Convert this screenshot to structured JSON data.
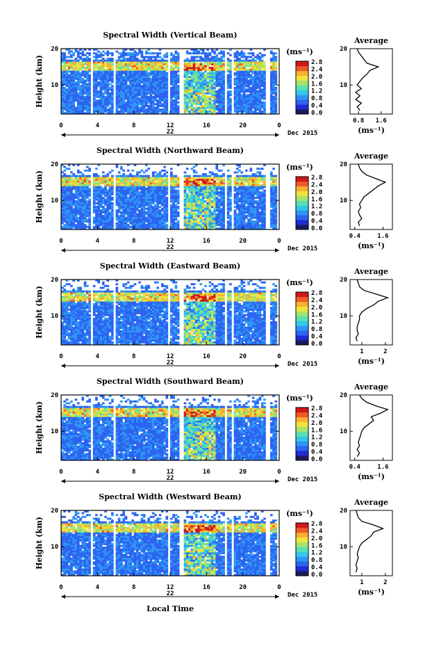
{
  "footer_label": "Local Time",
  "date_label": "Dec 2015",
  "day_label": "22",
  "colorbar": {
    "unit": "(ms⁻¹)",
    "ticks": [
      "0.0",
      "0.4",
      "0.8",
      "1.2",
      "1.6",
      "2.0",
      "2.4",
      "2.8"
    ],
    "colors": [
      "#1a1a5e",
      "#1f2bd6",
      "#2d64f0",
      "#2f95f5",
      "#33c8e8",
      "#5be0b0",
      "#a6e36a",
      "#f0e33c",
      "#f7b030",
      "#ef5a28",
      "#d01818"
    ]
  },
  "chart_data": [
    {
      "type": "heatmap",
      "title": "Spectral Width (Vertical Beam)",
      "ylabel": "Height (km)",
      "xlabel": "Local Time",
      "x_ticks": [
        "0",
        "4",
        "8",
        "12",
        "16",
        "20",
        "0"
      ],
      "y_ticks": [
        "20",
        "10"
      ],
      "xlim": [
        0,
        24
      ],
      "ylim": [
        2,
        20
      ],
      "clim": [
        0.0,
        2.8
      ],
      "profile": {
        "title": "Average",
        "xlabel": "(ms⁻¹)",
        "x_ticks": [
          "0.8",
          "1.6"
        ],
        "xlim": [
          0.5,
          2.0
        ],
        "height": [
          3,
          4,
          5,
          6,
          7,
          8,
          9,
          10,
          11,
          12,
          13,
          14,
          15,
          16,
          17,
          18,
          19,
          20
        ],
        "values": [
          0.85,
          0.75,
          0.9,
          0.7,
          0.85,
          0.7,
          0.9,
          0.75,
          0.85,
          0.95,
          1.1,
          1.2,
          1.5,
          1.1,
          1.0,
          0.9,
          0.8,
          0.75
        ]
      }
    },
    {
      "type": "heatmap",
      "title": "Spectral Width (Northward Beam)",
      "ylabel": "Height (km)",
      "xlabel": "Local Time",
      "x_ticks": [
        "0",
        "4",
        "8",
        "12",
        "16",
        "20",
        "0"
      ],
      "y_ticks": [
        "20",
        "10"
      ],
      "xlim": [
        0,
        24
      ],
      "ylim": [
        2,
        20
      ],
      "clim": [
        0.0,
        2.8
      ],
      "profile": {
        "title": "Average",
        "xlabel": "(ms⁻¹)",
        "x_ticks": [
          "0.4",
          "1.6"
        ],
        "xlim": [
          0.2,
          2.0
        ],
        "height": [
          3,
          4,
          5,
          6,
          7,
          8,
          9,
          10,
          11,
          12,
          13,
          14,
          15,
          16,
          17,
          18,
          19,
          20
        ],
        "values": [
          0.6,
          0.55,
          0.7,
          0.6,
          0.55,
          0.65,
          0.6,
          0.7,
          0.8,
          1.0,
          1.2,
          1.4,
          1.7,
          1.3,
          0.9,
          0.7,
          0.6,
          0.55
        ]
      }
    },
    {
      "type": "heatmap",
      "title": "Spectral Width (Eastward Beam)",
      "ylabel": "Height (km)",
      "xlabel": "Local Time",
      "x_ticks": [
        "0",
        "4",
        "8",
        "12",
        "16",
        "20",
        "0"
      ],
      "y_ticks": [
        "20",
        "10"
      ],
      "xlim": [
        0,
        24
      ],
      "ylim": [
        2,
        20
      ],
      "clim": [
        0.0,
        2.8
      ],
      "profile": {
        "title": "Average",
        "xlabel": "(ms⁻¹)",
        "x_ticks": [
          "1",
          "2"
        ],
        "xlim": [
          0.5,
          2.3
        ],
        "height": [
          3,
          4,
          5,
          6,
          7,
          8,
          9,
          10,
          11,
          12,
          13,
          14,
          15,
          16,
          17,
          18,
          19,
          20
        ],
        "values": [
          0.8,
          0.75,
          0.85,
          0.8,
          0.8,
          0.85,
          0.9,
          0.9,
          1.0,
          1.2,
          1.5,
          1.7,
          2.1,
          1.6,
          1.1,
          0.9,
          0.85,
          0.8
        ]
      }
    },
    {
      "type": "heatmap",
      "title": "Spectral Width (Southward Beam)",
      "ylabel": "Height (km)",
      "xlabel": "Local Time",
      "x_ticks": [
        "0",
        "4",
        "8",
        "12",
        "16",
        "20",
        "0"
      ],
      "y_ticks": [
        "20",
        "10"
      ],
      "xlim": [
        0,
        24
      ],
      "ylim": [
        2,
        20
      ],
      "clim": [
        0.0,
        2.8
      ],
      "profile": {
        "title": "Average",
        "xlabel": "(ms⁻¹)",
        "x_ticks": [
          "0.4",
          "1.6"
        ],
        "xlim": [
          0.2,
          2.0
        ],
        "height": [
          3,
          4,
          5,
          6,
          7,
          8,
          9,
          10,
          11,
          12,
          13,
          14,
          15,
          16,
          17,
          18,
          19,
          20
        ],
        "values": [
          0.5,
          0.6,
          0.5,
          0.6,
          0.55,
          0.6,
          0.65,
          0.7,
          0.8,
          1.0,
          1.2,
          1.1,
          1.5,
          1.8,
          1.3,
          0.9,
          0.7,
          0.6
        ]
      }
    },
    {
      "type": "heatmap",
      "title": "Spectral Width (Westward Beam)",
      "ylabel": "Height (km)",
      "xlabel": "Local Time",
      "x_ticks": [
        "0",
        "4",
        "8",
        "12",
        "16",
        "20",
        "0"
      ],
      "y_ticks": [
        "20",
        "10"
      ],
      "xlim": [
        0,
        24
      ],
      "ylim": [
        2,
        20
      ],
      "clim": [
        0.0,
        2.8
      ],
      "profile": {
        "title": "Average",
        "xlabel": "(ms⁻¹)",
        "x_ticks": [
          "1",
          "2"
        ],
        "xlim": [
          0.5,
          2.3
        ],
        "height": [
          3,
          4,
          5,
          6,
          7,
          8,
          9,
          10,
          11,
          12,
          13,
          14,
          15,
          16,
          17,
          18,
          19,
          20
        ],
        "values": [
          0.75,
          0.8,
          0.75,
          0.8,
          0.85,
          0.8,
          0.85,
          0.9,
          1.0,
          1.2,
          1.4,
          1.5,
          1.9,
          1.5,
          1.0,
          0.85,
          0.8,
          0.75
        ]
      }
    }
  ]
}
